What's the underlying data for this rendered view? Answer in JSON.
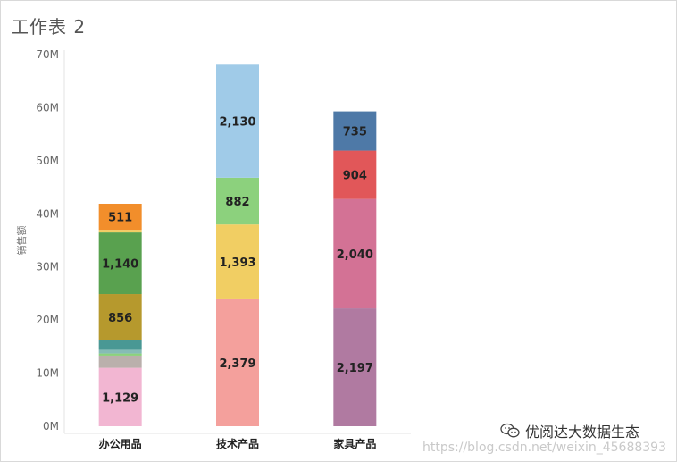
{
  "sheet_title": "工作表 2",
  "watermark": {
    "brand": "优阅达大数据生态",
    "url": "https://blog.csdn.net/weixin_45688393"
  },
  "chart_data": {
    "type": "bar",
    "stacked": true,
    "title": "",
    "xlabel": "",
    "ylabel": "销售额",
    "ylim": [
      0,
      70
    ],
    "y_unit": "M",
    "yticks": [
      "0M",
      "10M",
      "20M",
      "30M",
      "40M",
      "50M",
      "60M",
      "70M"
    ],
    "grid": false,
    "categories": [
      "办公用品",
      "技术产品",
      "家具产品"
    ],
    "stacks": [
      {
        "category": "办公用品",
        "segments": [
          {
            "value": 11.0,
            "label": "1,129",
            "color": "#f2b6d2"
          },
          {
            "value": 2.3,
            "label": "",
            "color": "#bab0ac"
          },
          {
            "value": 0.4,
            "label": "",
            "color": "#8cd17d"
          },
          {
            "value": 0.7,
            "label": "",
            "color": "#86bcb6"
          },
          {
            "value": 1.8,
            "label": "",
            "color": "#499894"
          },
          {
            "value": 8.7,
            "label": "856",
            "color": "#b6992d"
          },
          {
            "value": 11.6,
            "label": "1,140",
            "color": "#59a14f"
          },
          {
            "value": 0.5,
            "label": "",
            "color": "#f1ce63"
          },
          {
            "value": 4.9,
            "label": "511",
            "color": "#f28e2b"
          }
        ]
      },
      {
        "category": "技术产品",
        "segments": [
          {
            "value": 23.9,
            "label": "2,379",
            "color": "#f4a09c"
          },
          {
            "value": 14.1,
            "label": "1,393",
            "color": "#f1ce63"
          },
          {
            "value": 8.8,
            "label": "882",
            "color": "#8cd17d"
          },
          {
            "value": 21.3,
            "label": "2,130",
            "color": "#a0cbe8"
          }
        ]
      },
      {
        "category": "家具产品",
        "segments": [
          {
            "value": 22.2,
            "label": "2,197",
            "color": "#b07aa1"
          },
          {
            "value": 20.6,
            "label": "2,040",
            "color": "#d37295"
          },
          {
            "value": 9.1,
            "label": "904",
            "color": "#e15759"
          },
          {
            "value": 7.4,
            "label": "735",
            "color": "#4e79a7"
          }
        ]
      }
    ]
  }
}
